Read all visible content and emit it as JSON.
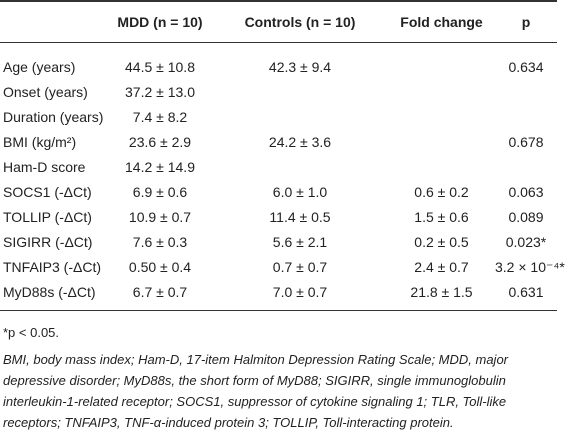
{
  "table": {
    "header": [
      "MDD (n = 10)",
      "Controls (n = 10)",
      "Fold change",
      "p"
    ],
    "rows": [
      [
        "Age (years)",
        "44.5 ± 10.8",
        "42.3 ± 9.4",
        null,
        "0.634"
      ],
      [
        "Onset (years)",
        "37.2 ± 13.0",
        null,
        null,
        null
      ],
      [
        "Duration (years)",
        "7.4 ± 8.2",
        null,
        null,
        null
      ],
      [
        "BMI (kg/m²)",
        "23.6 ± 2.9",
        "24.2 ± 3.6",
        null,
        "0.678"
      ],
      [
        "Ham-D score",
        "14.2 ± 14.9",
        null,
        null,
        null
      ],
      [
        "SOCS1 (-ΔCt)",
        "6.9 ± 0.6",
        "6.0 ± 1.0",
        "0.6 ± 0.2",
        "0.063"
      ],
      [
        "TOLLIP (-ΔCt)",
        "10.9 ± 0.7",
        "11.4 ± 0.5",
        "1.5 ± 0.6",
        "0.089"
      ],
      [
        "SIGIRR (-ΔCt)",
        "7.6 ± 0.3",
        "5.6 ± 2.1",
        "0.2 ± 0.5",
        "0.023*"
      ],
      [
        "TNFAIP3 (-ΔCt)",
        "0.50 ± 0.4",
        "0.7 ± 0.7",
        "2.4 ± 0.7",
        "3.2 × 10⁻⁴*"
      ],
      [
        "MyD88s (-ΔCt)",
        "6.7 ± 0.7",
        "7.0 ± 0.7",
        "21.8 ± 1.5",
        "0.631"
      ]
    ]
  },
  "footnotes": [
    "*p < 0.05.",
    "BMI, body mass index; Ham-D, 17-item Halmiton Depression Rating Scale; MDD, major depressive disorder; MyD88s, the short form of MyD88; SIGIRR, single immunoglobulin interleukin-1-related receptor; SOCS1, suppressor of cytokine signaling 1; TLR, Toll-like receptors; TNFAIP3, TNF-α-induced protein 3; TOLLIP, Toll-interacting protein."
  ]
}
